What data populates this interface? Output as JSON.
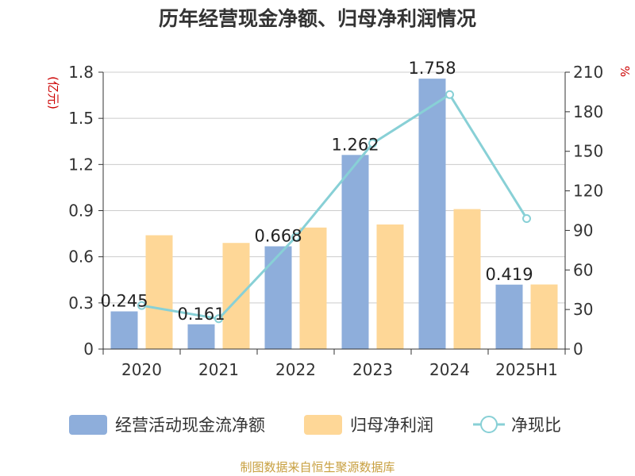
{
  "chart_data": {
    "type": "bar",
    "title": "历年经营现金净额、归母净利润情况",
    "categories": [
      "2020",
      "2021",
      "2022",
      "2023",
      "2024",
      "2025H1"
    ],
    "series": [
      {
        "name": "经营活动现金流净额",
        "type": "bar",
        "axis": "left",
        "color": "#8eaedb",
        "values": [
          0.245,
          0.161,
          0.668,
          1.262,
          1.758,
          0.419
        ],
        "labels": [
          "0.245",
          "0.161",
          "0.668",
          "1.262",
          "1.758",
          "0.419"
        ]
      },
      {
        "name": "归母净利润",
        "type": "bar",
        "axis": "left",
        "color": "#fed797",
        "values": [
          0.74,
          0.69,
          0.79,
          0.81,
          0.91,
          0.42
        ]
      },
      {
        "name": "净现比",
        "type": "line",
        "axis": "right",
        "color": "#88d0d6",
        "values": [
          33,
          23,
          85,
          156,
          193,
          99
        ]
      }
    ],
    "y_left": {
      "unit": "(亿元)",
      "min": 0,
      "max": 1.8,
      "ticks": [
        "0",
        "0.3",
        "0.6",
        "0.9",
        "1.2",
        "1.5",
        "1.8"
      ]
    },
    "y_right": {
      "unit": "%",
      "min": 0,
      "max": 210,
      "ticks": [
        "0",
        "30",
        "60",
        "90",
        "120",
        "150",
        "180",
        "210"
      ]
    },
    "grid": true,
    "legend": "bottom",
    "source": "制图数据来自恒生聚源数据库"
  }
}
